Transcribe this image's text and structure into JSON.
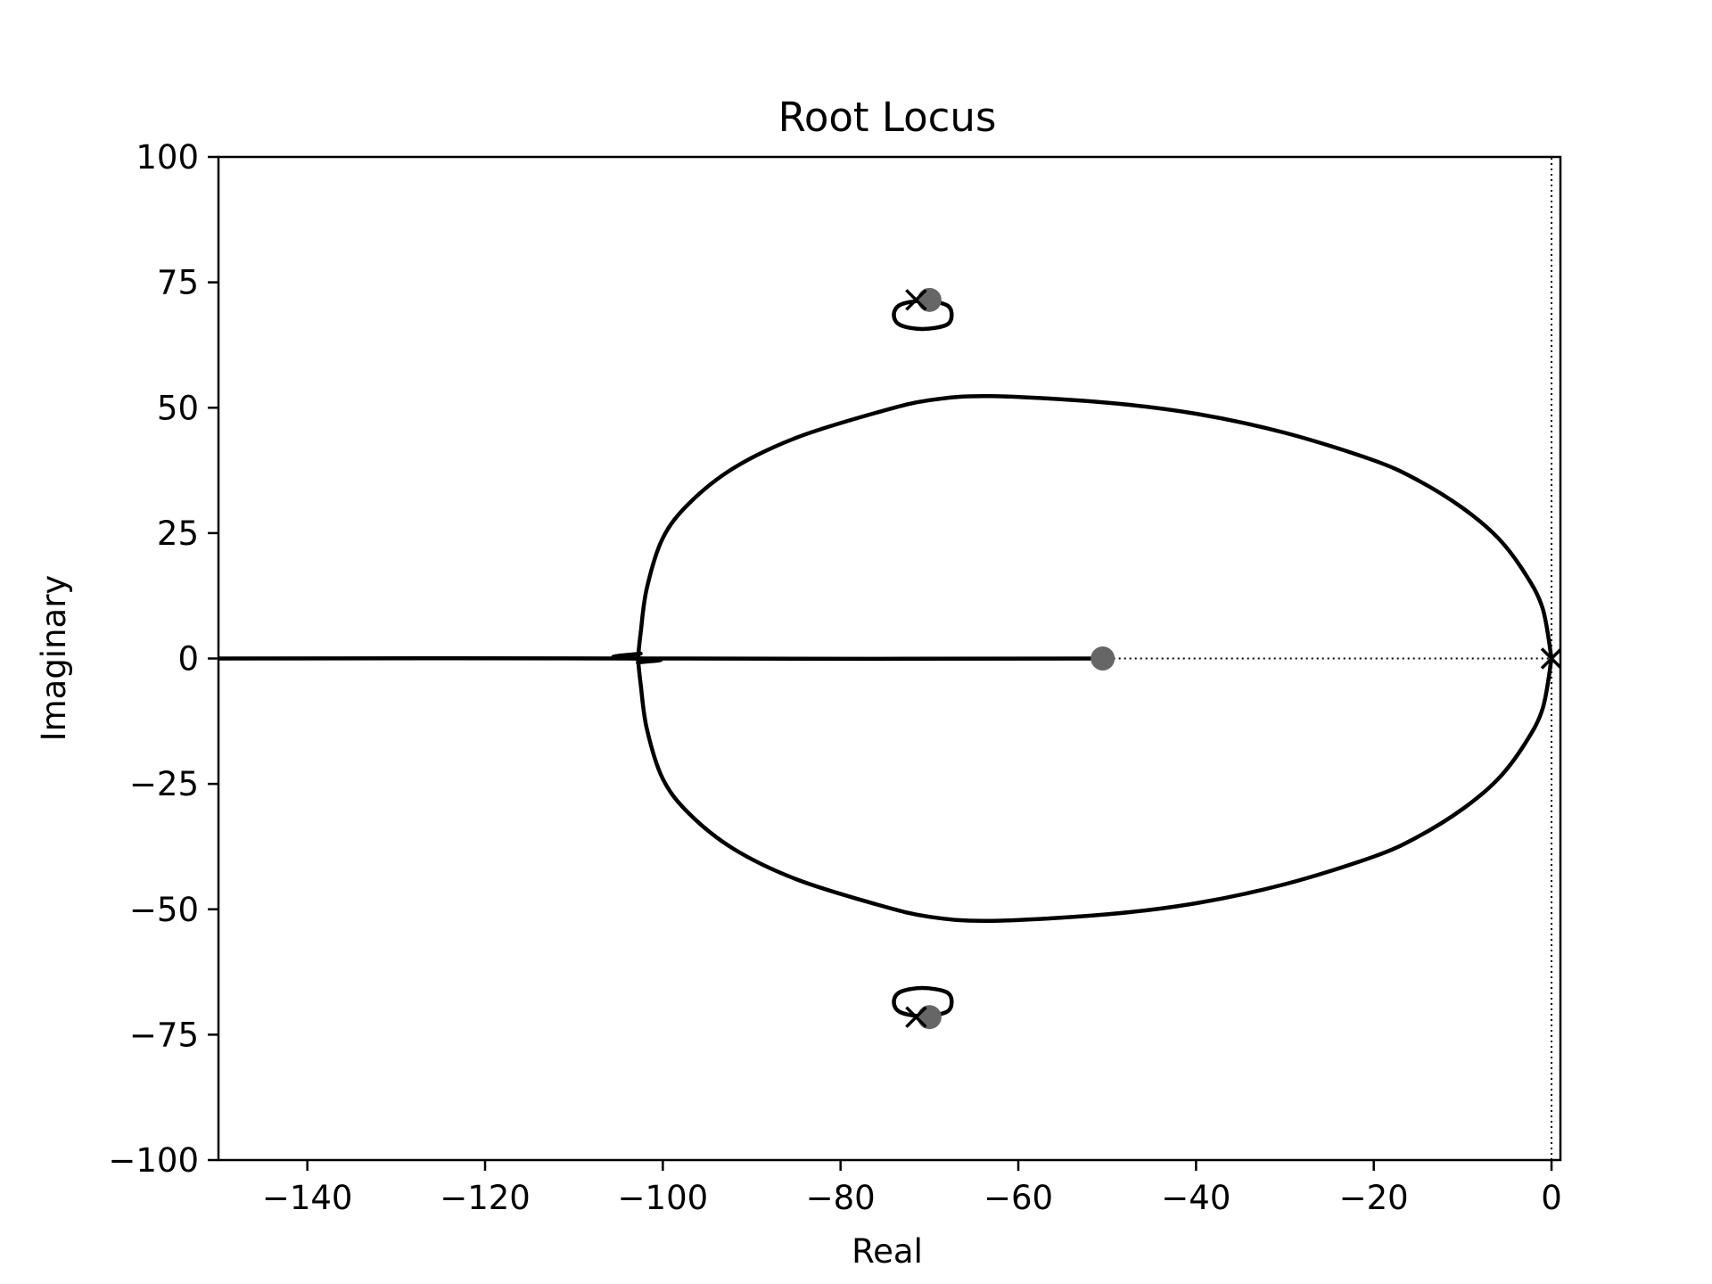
{
  "chart_data": {
    "type": "root-locus",
    "title": "Root Locus",
    "xlabel": "Real",
    "ylabel": "Imaginary",
    "xlim": [
      -150,
      1
    ],
    "ylim": [
      -100,
      100
    ],
    "x_ticks": [
      -140,
      -120,
      -100,
      -80,
      -60,
      -40,
      -20,
      0
    ],
    "x_tick_labels": [
      "−140",
      "−120",
      "−100",
      "−80",
      "−60",
      "−40",
      "−20",
      "0"
    ],
    "y_ticks": [
      100,
      75,
      50,
      25,
      0,
      -25,
      -50,
      -75,
      -100
    ],
    "y_tick_labels": [
      "100",
      "75",
      "50",
      "25",
      "0",
      "−25",
      "−50",
      "−75",
      "−100"
    ],
    "grid": false,
    "line_color": "#000000",
    "marker_color": "#666666",
    "branches": [
      {
        "name": "upper-loop",
        "points": [
          [
            0,
            0
          ],
          [
            -1,
            10
          ],
          [
            -3,
            17
          ],
          [
            -6,
            24
          ],
          [
            -10,
            30
          ],
          [
            -15,
            35.5
          ],
          [
            -20,
            39.5
          ],
          [
            -30,
            45
          ],
          [
            -40,
            48.8
          ],
          [
            -50,
            51
          ],
          [
            -63,
            52.3
          ],
          [
            -70,
            51.5
          ],
          [
            -76,
            49
          ],
          [
            -85,
            44
          ],
          [
            -92,
            38
          ],
          [
            -97,
            31
          ],
          [
            -100,
            24
          ],
          [
            -101.8,
            14
          ],
          [
            -102.5,
            5
          ],
          [
            -102.8,
            0
          ]
        ]
      },
      {
        "name": "lower-loop",
        "points": [
          [
            0,
            0
          ],
          [
            -1,
            -10
          ],
          [
            -3,
            -17
          ],
          [
            -6,
            -24
          ],
          [
            -10,
            -30
          ],
          [
            -15,
            -35.5
          ],
          [
            -20,
            -39.5
          ],
          [
            -30,
            -45
          ],
          [
            -40,
            -48.8
          ],
          [
            -50,
            -51
          ],
          [
            -63,
            -52.3
          ],
          [
            -70,
            -51.5
          ],
          [
            -76,
            -49
          ],
          [
            -85,
            -44
          ],
          [
            -92,
            -38
          ],
          [
            -97,
            -31
          ],
          [
            -100,
            -24
          ],
          [
            -101.8,
            -14
          ],
          [
            -102.5,
            -5
          ],
          [
            -102.8,
            0
          ]
        ]
      },
      {
        "name": "real-axis-left",
        "points": [
          [
            -150,
            0
          ],
          [
            -104,
            0
          ],
          [
            -102.8,
            -0.8
          ]
        ]
      },
      {
        "name": "real-axis-middle",
        "points": [
          [
            -102.5,
            1
          ],
          [
            -101.5,
            0
          ],
          [
            -50.5,
            0
          ]
        ]
      },
      {
        "name": "upper-small-circle",
        "closed": true,
        "points": [
          [
            -67.5,
            68.5
          ],
          [
            -68.1,
            70.5
          ],
          [
            -70.8,
            71.3
          ],
          [
            -73.3,
            70.5
          ],
          [
            -74,
            68.5
          ],
          [
            -73.3,
            66.5
          ],
          [
            -70.8,
            65.7
          ],
          [
            -68.1,
            66.5
          ]
        ]
      },
      {
        "name": "lower-small-circle",
        "closed": true,
        "points": [
          [
            -67.5,
            -68.5
          ],
          [
            -68.1,
            -70.5
          ],
          [
            -70.8,
            -71.3
          ],
          [
            -73.3,
            -70.5
          ],
          [
            -74,
            -68.5
          ],
          [
            -73.3,
            -66.5
          ],
          [
            -70.8,
            -65.7
          ],
          [
            -68.1,
            -66.5
          ]
        ]
      }
    ],
    "poles": [
      [
        0,
        0
      ],
      [
        -71.5,
        71.5
      ],
      [
        -71.5,
        -71.5
      ]
    ],
    "zeros": [
      [
        -50.5,
        0
      ],
      [
        -70,
        71.5
      ],
      [
        -70,
        -71.5
      ]
    ],
    "dotted_lines": [
      {
        "name": "real-axis-dotted",
        "points": [
          [
            -50.5,
            0
          ],
          [
            0,
            0
          ]
        ]
      },
      {
        "name": "imag-axis-dotted",
        "points": [
          [
            0,
            -100
          ],
          [
            0,
            100
          ]
        ]
      }
    ]
  }
}
